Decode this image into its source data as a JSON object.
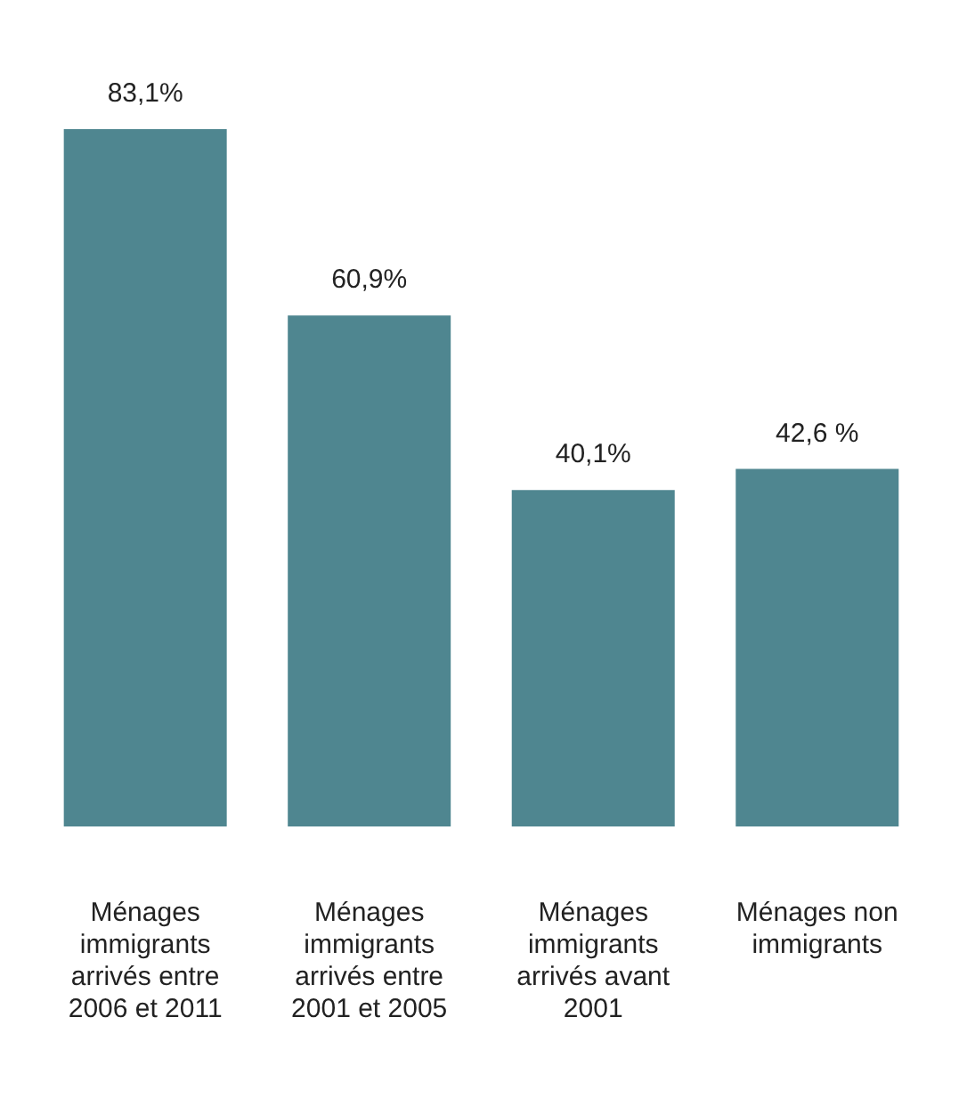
{
  "chart_data": {
    "type": "bar",
    "categories": [
      "Ménages immigrants arrivés entre 2006 et 2011",
      "Ménages immigrants arrivés entre 2001 et 2005",
      "Ménages immigrants arrivés avant 2001",
      "Ménages non immigrants"
    ],
    "values": [
      83.1,
      60.9,
      40.1,
      42.6
    ],
    "value_labels": [
      "83,1%",
      "60,9%",
      "40,1%",
      "42,6 %"
    ],
    "color": "#4f8690",
    "grid": false,
    "legend": false
  }
}
